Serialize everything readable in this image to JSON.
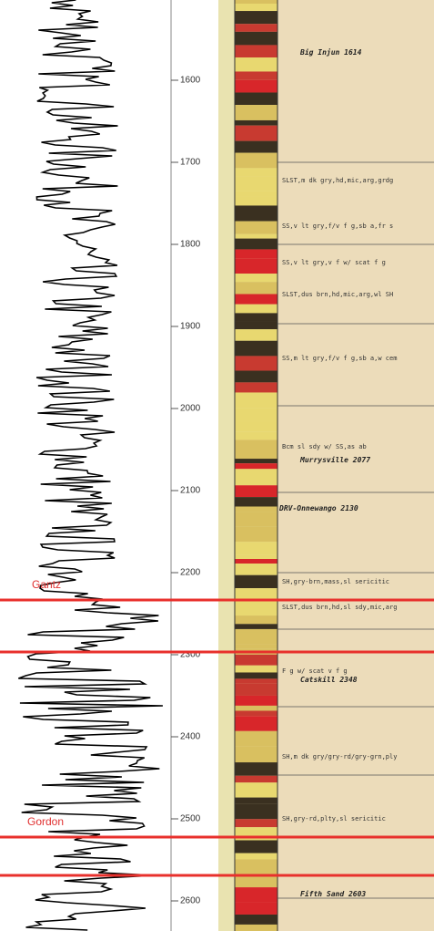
{
  "depth_scale": {
    "ticks": [
      1600,
      1700,
      1800,
      1900,
      2000,
      2100,
      2200,
      2300,
      2400,
      2500,
      2600
    ]
  },
  "markers": [
    {
      "label": "Gantz"
    },
    {
      "label": "Gordon"
    }
  ],
  "formations": [
    "Big Injun 1614",
    "Murrysville 2077",
    "DRV-Onnewango 2130",
    "Catskill 2348",
    "Fifth Sand 2603"
  ],
  "descriptions": [
    "SLST,m dk gry,hd,mic,arg,grdg",
    "SS,v lt gry,f/v f g,sb a,fr s",
    "SS,v lt gry,v f w/ scat f g",
    "SLST,dus brn,hd,mic,arg,wl SH",
    "SS,m lt gry,f/v f g,sb a,w cem",
    "Bcm sl sdy w/ SS,as ab",
    "SH,gry-brn,mass,sl sericitic",
    "SLST,dus brn,hd,sl sdy,mic,arg",
    "F g w/ scat v f g",
    "SH,m dk gry/gry-rd/gry-grn,ply",
    "SH,gry-rd,plty,sl sericitic"
  ]
}
